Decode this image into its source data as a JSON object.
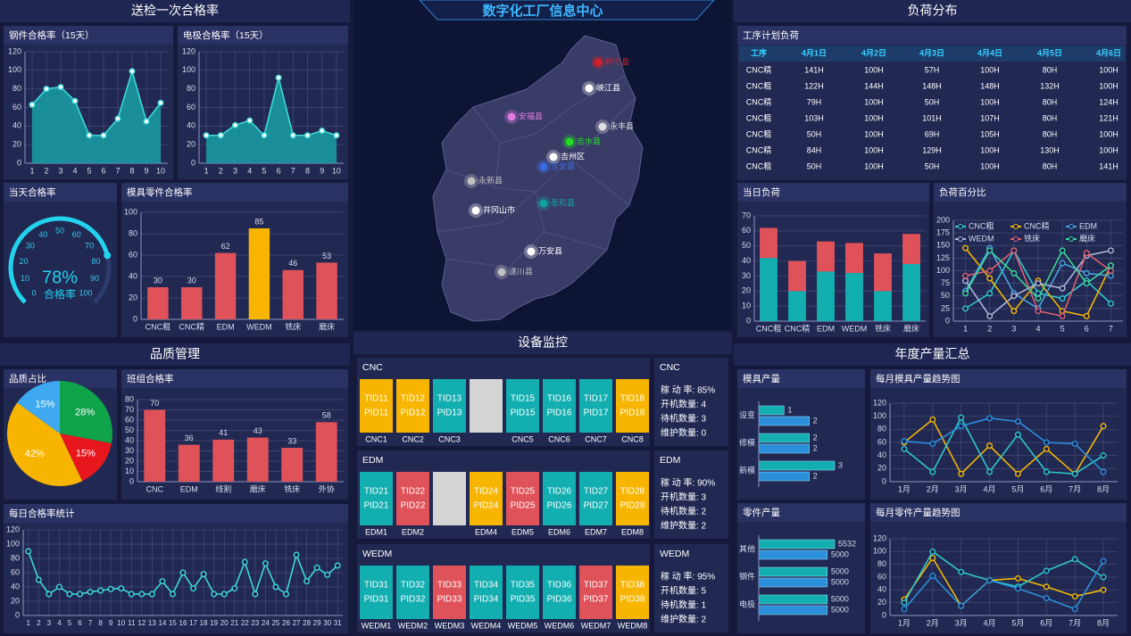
{
  "header": {
    "title": "数字化工厂信息中心"
  },
  "sections": [
    "送检一次合格率",
    "品质管理",
    "设备监控",
    "负荷分布",
    "年度产量汇总"
  ],
  "map": {
    "places": [
      {
        "name": "新干县",
        "color": "#d0202a"
      },
      {
        "name": "峡江县",
        "color": "#ffffff"
      },
      {
        "name": "安福县",
        "color": "#e07be0"
      },
      {
        "name": "永丰县",
        "color": "#e0e0e0"
      },
      {
        "name": "吉水县",
        "color": "#22dd22"
      },
      {
        "name": "吉州区",
        "color": "#ffffff"
      },
      {
        "name": "吉安县",
        "color": "#3a6ee0"
      },
      {
        "name": "永新县",
        "color": "#c0c0c0"
      },
      {
        "name": "泰和县",
        "color": "#0fa3a0"
      },
      {
        "name": "井冈山市",
        "color": "#ffffff"
      },
      {
        "name": "万安县",
        "color": "#ffffff"
      },
      {
        "name": "遂川县",
        "color": "#c0c0c0"
      }
    ]
  },
  "load_table": {
    "title": "工序计划负荷",
    "columns": [
      "工序",
      "4月1日",
      "4月2日",
      "4月3日",
      "4月4日",
      "4月5日",
      "4月6日"
    ],
    "rows": [
      [
        "CNC精",
        "141H",
        "100H",
        "57H",
        "100H",
        "80H",
        "100H"
      ],
      [
        "CNC粗",
        "122H",
        "144H",
        "148H",
        "148H",
        "132H",
        "100H"
      ],
      [
        "CNC精",
        "79H",
        "100H",
        "50H",
        "100H",
        "80H",
        "124H"
      ],
      [
        "CNC粗",
        "103H",
        "100H",
        "101H",
        "107H",
        "80H",
        "121H"
      ],
      [
        "CNC粗",
        "50H",
        "100H",
        "69H",
        "105H",
        "80H",
        "100H"
      ],
      [
        "CNC精",
        "84H",
        "100H",
        "129H",
        "100H",
        "130H",
        "100H"
      ],
      [
        "CNC粗",
        "50H",
        "100H",
        "50H",
        "100H",
        "80H",
        "141H"
      ]
    ]
  },
  "equipment": [
    {
      "name": "CNC",
      "stats": [
        "稼 动 率: 85%",
        "开机数量: 4",
        "待机数量: 3",
        "维护数量: 0"
      ],
      "machines": [
        {
          "name": "CNC1",
          "tid": "TID11",
          "pid": "PID11",
          "color": "#f7b500"
        },
        {
          "name": "CNC2",
          "tid": "TID12",
          "pid": "PID12",
          "color": "#f7b500"
        },
        {
          "name": "CNC3",
          "tid": "TID13",
          "pid": "PID13",
          "color": "#13aeb0"
        },
        {
          "name": null,
          "tid": null,
          "pid": null,
          "color": "#d4d4d4"
        },
        {
          "name": "CNC5",
          "tid": "TID15",
          "pid": "PID15",
          "color": "#13aeb0"
        },
        {
          "name": "CNC6",
          "tid": "TID16",
          "pid": "PID16",
          "color": "#13aeb0"
        },
        {
          "name": "CNC7",
          "tid": "TID17",
          "pid": "PID17",
          "color": "#13aeb0"
        },
        {
          "name": "CNC8",
          "tid": "TID18",
          "pid": "PID18",
          "color": "#f7b500"
        }
      ]
    },
    {
      "name": "EDM",
      "stats": [
        "稼 动 率: 90%",
        "开机数量: 3",
        "待机数量: 2",
        "维护数量: 2"
      ],
      "machines": [
        {
          "name": "EDM1",
          "tid": "TID21",
          "pid": "PID21",
          "color": "#13aeb0"
        },
        {
          "name": "EDM2",
          "tid": "TID22",
          "pid": "PID22",
          "color": "#e0525a"
        },
        {
          "name": null,
          "tid": null,
          "pid": null,
          "color": "#d4d4d4"
        },
        {
          "name": "EDM4",
          "tid": "TID24",
          "pid": "PID24",
          "color": "#f7b500"
        },
        {
          "name": "EDM5",
          "tid": "TID25",
          "pid": "PID25",
          "color": "#e0525a"
        },
        {
          "name": "EDM6",
          "tid": "TID26",
          "pid": "PID26",
          "color": "#13aeb0"
        },
        {
          "name": "EDM7",
          "tid": "TID27",
          "pid": "PID27",
          "color": "#13aeb0"
        },
        {
          "name": "EDM8",
          "tid": "TID28",
          "pid": "PID28",
          "color": "#f7b500"
        }
      ]
    },
    {
      "name": "WEDM",
      "stats": [
        "稼 动 率: 95%",
        "开机数量: 5",
        "待机数量: 1",
        "维护数量: 2"
      ],
      "machines": [
        {
          "name": "WEDM1",
          "tid": "TID31",
          "pid": "PID31",
          "color": "#13aeb0"
        },
        {
          "name": "WEDM2",
          "tid": "TID32",
          "pid": "PID32",
          "color": "#13aeb0"
        },
        {
          "name": "WEDM3",
          "tid": "TID33",
          "pid": "PID33",
          "color": "#e0525a"
        },
        {
          "name": "WEDM4",
          "tid": "TID34",
          "pid": "PID34",
          "color": "#13aeb0"
        },
        {
          "name": "WEDM5",
          "tid": "TID35",
          "pid": "PID35",
          "color": "#13aeb0"
        },
        {
          "name": "WEDM6",
          "tid": "TID36",
          "pid": "PID36",
          "color": "#13aeb0"
        },
        {
          "name": "WEDM7",
          "tid": "TID37",
          "pid": "PID37",
          "color": "#e0525a"
        },
        {
          "name": "WEDM8",
          "tid": "TID38",
          "pid": "PID38",
          "color": "#f7b500"
        }
      ]
    }
  ],
  "chart_data": [
    {
      "type": "area",
      "title": "钢件合格率（15天）",
      "categories": [
        1,
        2,
        3,
        4,
        5,
        6,
        7,
        8,
        9,
        10
      ],
      "values": [
        63,
        80,
        82,
        67,
        30,
        30,
        48,
        99,
        45,
        65
      ],
      "color": "#3fd9d9",
      "ylim": [
        0,
        120
      ],
      "yticks": [
        0,
        20,
        40,
        60,
        80,
        100,
        120
      ],
      "grid": true
    },
    {
      "type": "area",
      "title": "电极合格率（15天）",
      "categories": [
        1,
        2,
        3,
        4,
        5,
        6,
        7,
        8,
        9,
        10
      ],
      "values": [
        30,
        30,
        41,
        46,
        30,
        92,
        30,
        30,
        35,
        30
      ],
      "color": "#3fd9d9",
      "ylim": [
        0,
        120
      ],
      "yticks": [
        0,
        20,
        40,
        60,
        80,
        100,
        120
      ],
      "grid": true
    },
    {
      "type": "gauge",
      "title": "当天合格率",
      "value": 78,
      "value_label": "78%",
      "label": "合格率",
      "color": "#22d3ee",
      "ylim": [
        0,
        100
      ],
      "yticks": [
        0,
        10,
        20,
        30,
        40,
        50,
        60,
        70,
        80,
        90,
        100
      ]
    },
    {
      "type": "bar",
      "title": "模具零件合格率",
      "categories": [
        "CNC粗",
        "CNC精",
        "EDM",
        "WEDM",
        "铣床",
        "磨床"
      ],
      "values": [
        30,
        30,
        62,
        85,
        46,
        53
      ],
      "colors": [
        "#e0525a",
        "#e0525a",
        "#e0525a",
        "#f7b500",
        "#e0525a",
        "#e0525a"
      ],
      "ylim": [
        0,
        100
      ],
      "yticks": [
        0,
        20,
        40,
        60,
        80,
        100
      ],
      "grid": true,
      "show_values": true
    },
    {
      "type": "pie",
      "title": "品质占比",
      "values": [
        28,
        15,
        42,
        15
      ],
      "value_labels": [
        "28%",
        "15%",
        "42%",
        "15%"
      ],
      "colors": [
        "#0fa34a",
        "#e8161d",
        "#f7b500",
        "#3ea8f0"
      ]
    },
    {
      "type": "bar",
      "title": "班组合格率",
      "categories": [
        "CNC",
        "EDM",
        "线割",
        "磨床",
        "铣床",
        "外协"
      ],
      "values": [
        70,
        36,
        41,
        43,
        33,
        58
      ],
      "color": "#e0525a",
      "ylim": [
        0,
        80
      ],
      "yticks": [
        0,
        10,
        20,
        30,
        40,
        50,
        60,
        70,
        80
      ],
      "grid": true,
      "show_values": true
    },
    {
      "type": "line",
      "title": "每日合格率统计",
      "categories": [
        1,
        2,
        3,
        4,
        5,
        6,
        7,
        8,
        9,
        10,
        11,
        12,
        13,
        14,
        15,
        16,
        17,
        18,
        19,
        20,
        21,
        22,
        23,
        24,
        25,
        26,
        27,
        28,
        29,
        30,
        31
      ],
      "values": [
        90,
        50,
        30,
        40,
        30,
        30,
        33,
        35,
        37,
        38,
        30,
        30,
        30,
        48,
        30,
        60,
        38,
        58,
        30,
        30,
        38,
        75,
        30,
        73,
        40,
        30,
        85,
        48,
        67,
        57,
        70
      ],
      "color": "#3fd9d9",
      "ylim": [
        0,
        120
      ],
      "yticks": [
        0,
        20,
        40,
        60,
        80,
        100,
        120
      ],
      "grid": true
    },
    {
      "type": "stacked_bar",
      "title": "当日负荷",
      "categories": [
        "CNC粗",
        "CNC精",
        "EDM",
        "WEDM",
        "铣床",
        "磨床"
      ],
      "series": [
        {
          "color": "#13aeb0",
          "values": [
            42,
            20,
            33,
            32,
            20,
            38
          ]
        },
        {
          "color": "#e0525a",
          "values": [
            20,
            20,
            20,
            20,
            25,
            20
          ]
        }
      ],
      "ylim": [
        0,
        70
      ],
      "yticks": [
        0,
        10,
        20,
        30,
        40,
        50,
        60,
        70
      ],
      "grid": true
    },
    {
      "type": "line",
      "title": "负荷百分比",
      "categories": [
        1,
        2,
        3,
        4,
        5,
        6,
        7
      ],
      "legend": "top",
      "series": [
        {
          "name": "CNC粗",
          "color": "#2ec7c9",
          "values": [
            25,
            55,
            140,
            55,
            45,
            80,
            35
          ]
        },
        {
          "name": "CNC精",
          "color": "#f2b705",
          "values": [
            145,
            85,
            20,
            80,
            20,
            10,
            110
          ]
        },
        {
          "name": "EDM",
          "color": "#4aa3df",
          "values": [
            60,
            145,
            55,
            25,
            115,
            95,
            90
          ]
        },
        {
          "name": "WEDM",
          "color": "#b0b8d8",
          "values": [
            80,
            10,
            50,
            75,
            65,
            130,
            140
          ]
        },
        {
          "name": "铣床",
          "color": "#e06070",
          "values": [
            90,
            100,
            140,
            20,
            10,
            135,
            100
          ]
        },
        {
          "name": "磨床",
          "color": "#3ed598",
          "values": [
            55,
            140,
            95,
            45,
            140,
            75,
            110
          ]
        }
      ],
      "ylim": [
        0,
        200
      ],
      "yticks": [
        0,
        25,
        50,
        75,
        100,
        125,
        150,
        175,
        200
      ],
      "grid": true
    },
    {
      "type": "hbar",
      "title": "模具产量",
      "categories": [
        "设变",
        "修模",
        "新模"
      ],
      "series": [
        {
          "color": "#13aeb0",
          "values": [
            1,
            2,
            3
          ]
        },
        {
          "color": "#2a8fd8",
          "values": [
            2,
            2,
            2
          ]
        }
      ]
    },
    {
      "type": "hbar",
      "title": "零件产量",
      "categories": [
        "其他",
        "钢件",
        "电极"
      ],
      "series": [
        {
          "color": "#13aeb0",
          "values": [
            5532,
            5000,
            5000
          ]
        },
        {
          "color": "#2a8fd8",
          "values": [
            5000,
            5000,
            5000
          ]
        }
      ]
    },
    {
      "type": "line",
      "title": "每月模具产量趋势图",
      "categories": [
        "1月",
        "2月",
        "3月",
        "4月",
        "5月",
        "6月",
        "7月",
        "8月"
      ],
      "series": [
        {
          "color": "#f2b705",
          "values": [
            60,
            95,
            12,
            55,
            12,
            50,
            12,
            85
          ]
        },
        {
          "color": "#2ec7c9",
          "values": [
            50,
            15,
            98,
            15,
            72,
            15,
            12,
            40
          ]
        },
        {
          "color": "#2a8fd8",
          "values": [
            62,
            58,
            85,
            97,
            92,
            60,
            58,
            15
          ]
        }
      ],
      "ylim": [
        0,
        120
      ],
      "yticks": [
        0,
        20,
        40,
        60,
        80,
        100,
        120
      ],
      "grid": true
    },
    {
      "type": "line",
      "title": "每月零件产量趋势图",
      "categories": [
        "1月",
        "2月",
        "3月",
        "4月",
        "5月",
        "6月",
        "7月",
        "8月"
      ],
      "series": [
        {
          "color": "#f2b705",
          "values": [
            25,
            90,
            15,
            55,
            58,
            45,
            30,
            40
          ]
        },
        {
          "color": "#2ec7c9",
          "values": [
            20,
            100,
            68,
            55,
            45,
            70,
            88,
            60
          ]
        },
        {
          "color": "#2a8fd8",
          "values": [
            10,
            62,
            15,
            55,
            42,
            27,
            10,
            85
          ]
        }
      ],
      "ylim": [
        0,
        120
      ],
      "yticks": [
        0,
        20,
        40,
        60,
        80,
        100,
        120
      ],
      "grid": true
    }
  ]
}
